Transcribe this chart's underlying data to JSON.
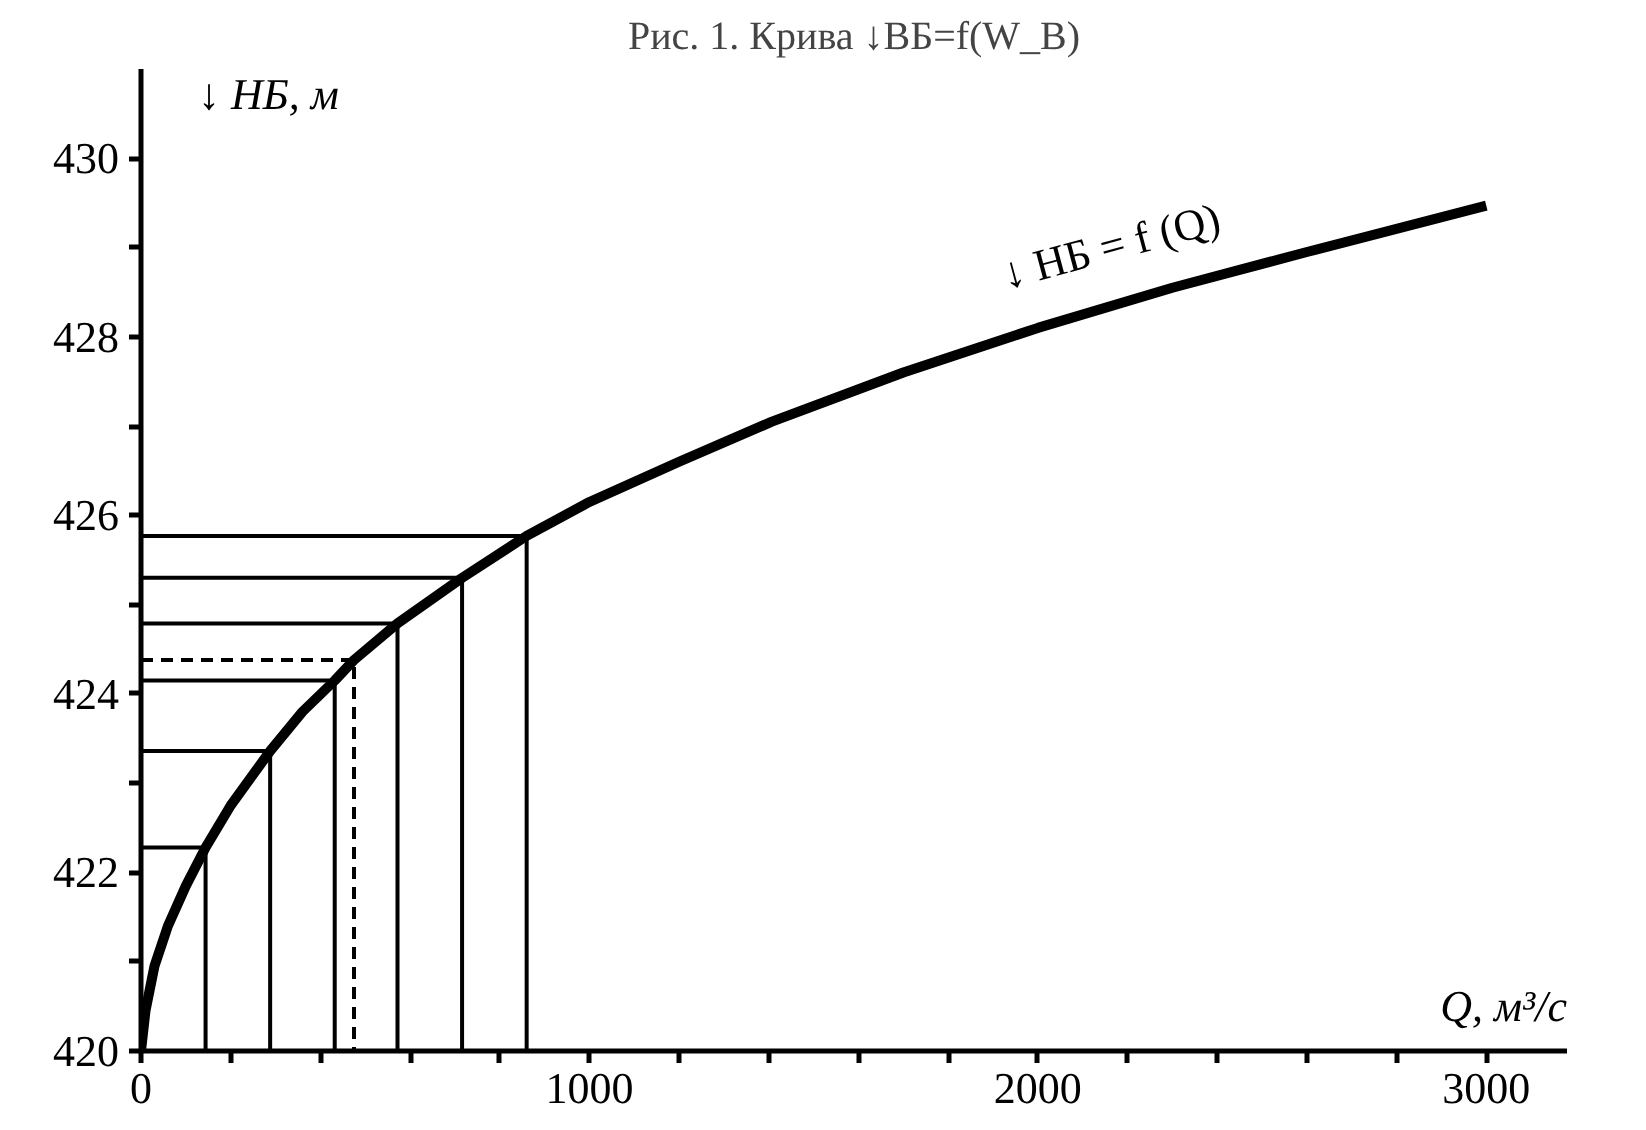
{
  "chart_data": {
    "type": "line",
    "title": "Рис. 1. Крива ↓ВБ=f(W_B)",
    "xlabel": "Q, м³/с",
    "ylabel": "↓ НБ, м",
    "annotations": [
      "↓ НБ = f (Q)"
    ],
    "xlim": [
      0,
      3180
    ],
    "ylim": [
      420,
      431
    ],
    "xticks": [
      0,
      {
        "value": 200,
        "label": null
      },
      {
        "value": 400,
        "label": null
      },
      {
        "value": 600,
        "label": null
      },
      {
        "value": 800,
        "label": null
      },
      1000,
      {
        "value": 1200,
        "label": null
      },
      {
        "value": 1400,
        "label": null
      },
      {
        "value": 1600,
        "label": null
      },
      {
        "value": 1800,
        "label": null
      },
      2000,
      {
        "value": 2200,
        "label": null
      },
      {
        "value": 2400,
        "label": null
      },
      {
        "value": 2600,
        "label": null
      },
      {
        "value": 2800,
        "label": null
      },
      3000
    ],
    "yticks": [
      420,
      {
        "value": 421,
        "label": null
      },
      422,
      {
        "value": 423,
        "label": null
      },
      424,
      {
        "value": 425,
        "label": null
      },
      426,
      {
        "value": 427,
        "label": null
      },
      428,
      {
        "value": 429,
        "label": null
      },
      430
    ],
    "grid": false,
    "line_style": "solid",
    "series": [
      {
        "color": "#000000",
        "x": [
          0,
          10,
          30,
          60,
          100,
          144,
          200,
          288,
          360,
          432,
          475,
          572,
          716,
          860,
          1000,
          1200,
          1407,
          1700,
          2000,
          2300,
          2600,
          3000
        ],
        "values": [
          420,
          420.45,
          420.95,
          421.4,
          421.85,
          422.28,
          422.75,
          423.36,
          423.8,
          424.15,
          424.38,
          424.79,
          425.3,
          425.77,
          426.15,
          426.6,
          427.05,
          427.6,
          428.1,
          428.55,
          428.95,
          429.47
        ]
      },
      {
        "color": "#000000",
        "x": [
          0,
          144,
          144
        ],
        "values": [
          422.28,
          422.28,
          420
        ]
      },
      {
        "color": "#000000",
        "x": [
          0,
          288,
          288
        ],
        "values": [
          423.36,
          423.36,
          420
        ]
      },
      {
        "color": "#000000",
        "x": [
          0,
          432,
          432
        ],
        "values": [
          424.15,
          424.15,
          420
        ]
      },
      {
        "color": "#000000",
        "x": [
          0,
          475,
          475
        ],
        "values": [
          424.38,
          424.38,
          420
        ],
        "line_style": "dashed"
      },
      {
        "color": "#000000",
        "x": [
          0,
          572,
          572
        ],
        "values": [
          424.79,
          424.79,
          420
        ]
      },
      {
        "color": "#000000",
        "x": [
          0,
          716,
          716
        ],
        "values": [
          425.3,
          425.3,
          420
        ]
      },
      {
        "color": "#000000",
        "x": [
          0,
          860,
          860
        ],
        "values": [
          425.77,
          425.77,
          420
        ]
      }
    ]
  }
}
